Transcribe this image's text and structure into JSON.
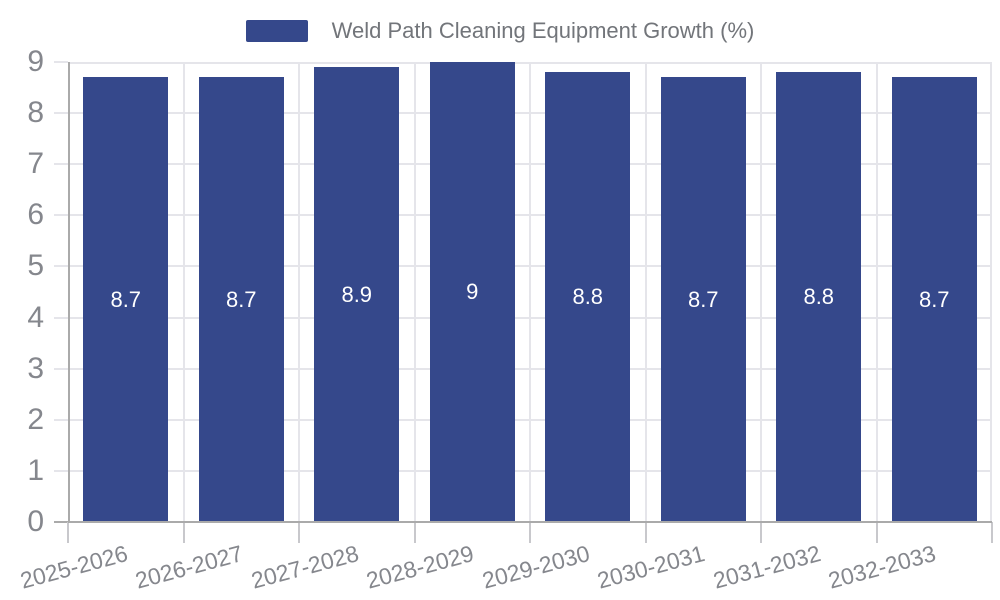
{
  "legend": {
    "label": "Weld Path Cleaning Equipment Growth (%)"
  },
  "colors": {
    "bar": "#35488B",
    "grid": "#E5E5EA",
    "axis": "#AAAAAA",
    "tick": "#C8C8CC",
    "axis_label": "#85878D",
    "legend_text": "#72757A",
    "bar_label": "#FFFFFF",
    "background": "#FFFFFF"
  },
  "chart_data": {
    "type": "bar",
    "title": "",
    "legend_entries": [
      "Weld Path Cleaning Equipment Growth (%)"
    ],
    "legend_position": "top-center",
    "categories": [
      "2025-2026",
      "2026-2027",
      "2027-2028",
      "2028-2029",
      "2029-2030",
      "2030-2031",
      "2031-2032",
      "2032-2033"
    ],
    "values": [
      8.7,
      8.7,
      8.9,
      9,
      8.8,
      8.7,
      8.8,
      8.7
    ],
    "value_labels": [
      "8.7",
      "8.7",
      "8.9",
      "9",
      "8.8",
      "8.7",
      "8.8",
      "8.7"
    ],
    "xlabel": "",
    "ylabel": "",
    "ylim": [
      0,
      9
    ],
    "yticks": [
      0,
      1,
      2,
      3,
      4,
      5,
      6,
      7,
      8,
      9
    ],
    "grid": true,
    "x_label_rotation_deg": -15
  }
}
